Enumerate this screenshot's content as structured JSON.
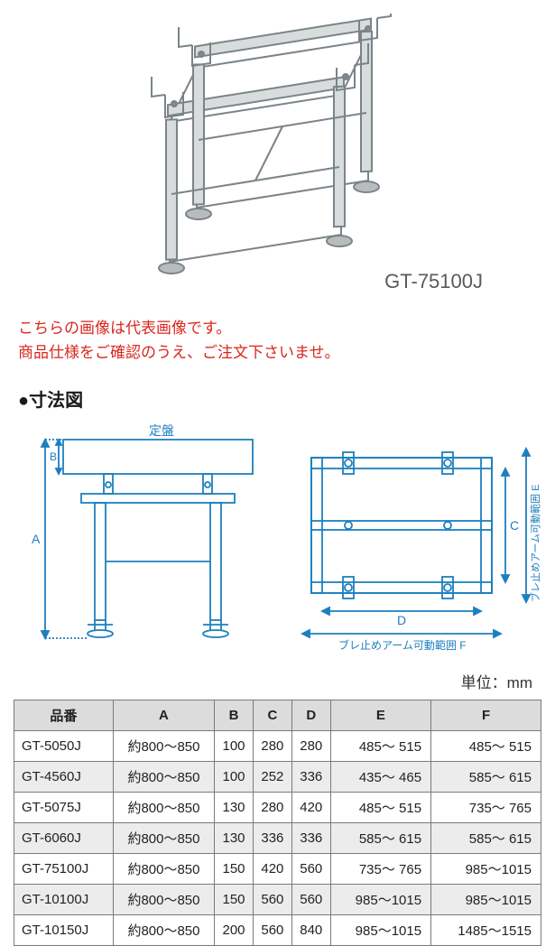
{
  "product_image": {
    "model_label": "GT-75100J",
    "stand_color": "#d8dcdc",
    "stand_stroke": "#7a8488",
    "foot_color": "#b8bcbc"
  },
  "notice": {
    "line1": "こちらの画像は代表画像です。",
    "line2": "商品仕様をご確認のうえ、ご注文下さいませ。"
  },
  "section": {
    "title": "●寸法図"
  },
  "diagram": {
    "stroke_color": "#1e7fbf",
    "label_A": "A",
    "label_B": "B",
    "label_C": "C",
    "label_D": "D",
    "label_E": "ブレ止めアーム可動範囲 E",
    "label_F": "ブレ止めアーム可動範囲 F",
    "label_plate": "定盤"
  },
  "unit": "単位：mm",
  "table": {
    "headers": [
      "品番",
      "A",
      "B",
      "C",
      "D",
      "E",
      "F"
    ],
    "rows": [
      [
        "GT-5050J",
        "約800～850",
        "100",
        "280",
        "280",
        "485～  515",
        "485～  515"
      ],
      [
        "GT-4560J",
        "約800～850",
        "100",
        "252",
        "336",
        "435～  465",
        "585～  615"
      ],
      [
        "GT-5075J",
        "約800～850",
        "130",
        "280",
        "420",
        "485～  515",
        "735～  765"
      ],
      [
        "GT-6060J",
        "約800～850",
        "130",
        "336",
        "336",
        "585～  615",
        "585～  615"
      ],
      [
        "GT-75100J",
        "約800～850",
        "150",
        "420",
        "560",
        "735～  765",
        "985～1015"
      ],
      [
        "GT-10100J",
        "約800～850",
        "150",
        "560",
        "560",
        "985～1015",
        "985～1015"
      ],
      [
        "GT-10150J",
        "約800～850",
        "200",
        "560",
        "840",
        "985～1015",
        "1485～1515"
      ]
    ]
  }
}
